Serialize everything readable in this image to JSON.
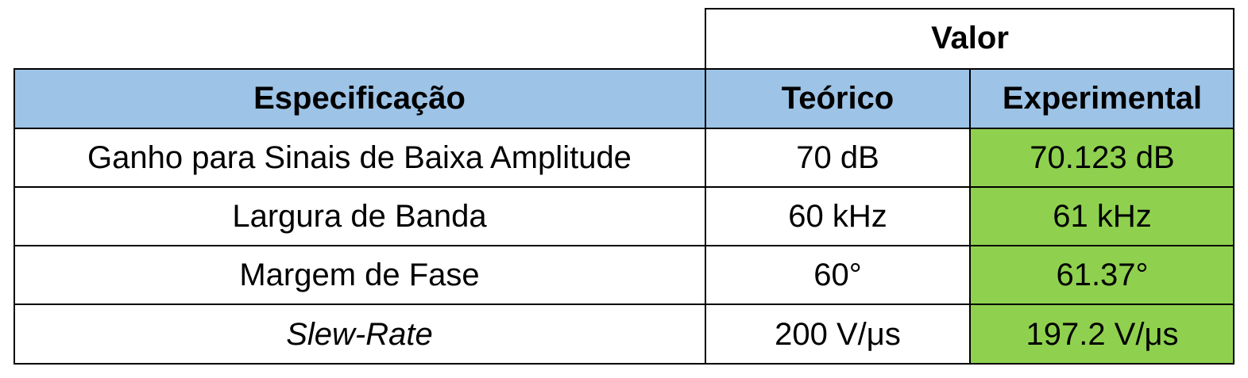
{
  "table": {
    "group_header": "Valor",
    "headers": {
      "spec": "Especificação",
      "theoretical": "Teórico",
      "experimental": "Experimental"
    },
    "rows": [
      {
        "spec": "Ganho para Sinais de Baixa Amplitude",
        "theoretical": "70 dB",
        "experimental": "70.123 dB"
      },
      {
        "spec": "Largura de Banda",
        "theoretical": "60 kHz",
        "experimental": "61 kHz"
      },
      {
        "spec": "Margem de Fase",
        "theoretical": "60°",
        "experimental": "61.37°"
      },
      {
        "spec": "Slew-Rate",
        "theoretical": "200 V/μs",
        "experimental": "197.2 V/μs"
      }
    ]
  },
  "colors": {
    "header_fill": "#9dc3e6",
    "experimental_fill": "#8fd14f",
    "border": "#000000"
  }
}
